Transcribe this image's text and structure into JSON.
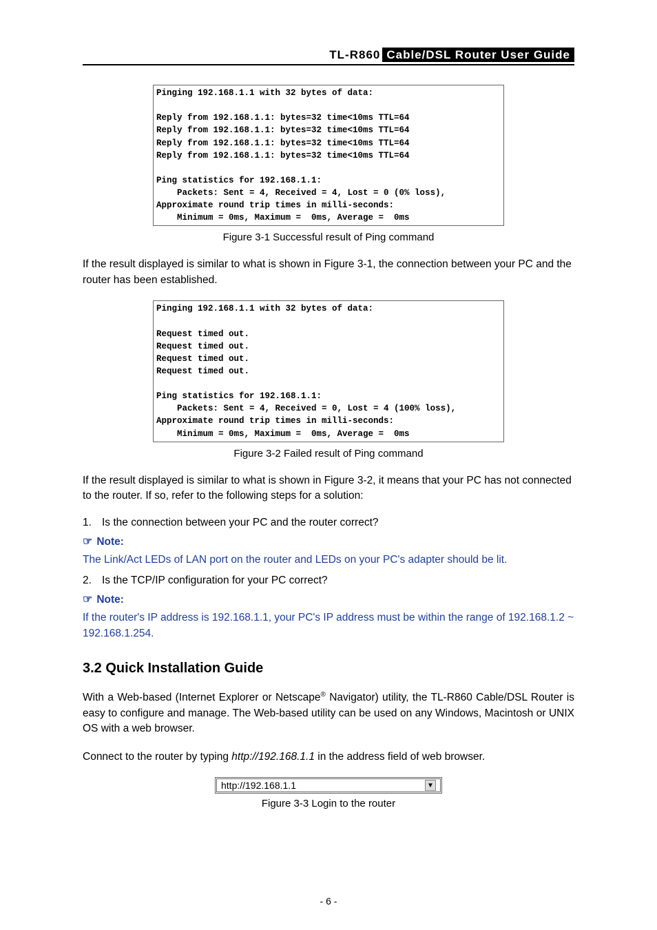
{
  "header": {
    "model": "TL-R860",
    "title": "Cable/DSL  Router  User  Guide"
  },
  "fig31_content": "Pinging 192.168.1.1 with 32 bytes of data:\n\nReply from 192.168.1.1: bytes=32 time<10ms TTL=64\nReply from 192.168.1.1: bytes=32 time<10ms TTL=64\nReply from 192.168.1.1: bytes=32 time<10ms TTL=64\nReply from 192.168.1.1: bytes=32 time<10ms TTL=64\n\nPing statistics for 192.168.1.1:\n    Packets: Sent = 4, Received = 4, Lost = 0 (0% loss),\nApproximate round trip times in milli-seconds:\n    Minimum = 0ms, Maximum =  0ms, Average =  0ms",
  "fig31_caption": "Figure 3-1   Successful result of Ping command",
  "para1": "If the result displayed is similar to what is shown in Figure 3-1, the connection between your PC and the router has been established.",
  "fig32_content": "Pinging 192.168.1.1 with 32 bytes of data:\n\nRequest timed out.\nRequest timed out.\nRequest timed out.\nRequest timed out.\n\nPing statistics for 192.168.1.1:\n    Packets: Sent = 4, Received = 0, Lost = 4 (100% loss),\nApproximate round trip times in milli-seconds:\n    Minimum = 0ms, Maximum =  0ms, Average =  0ms",
  "fig32_caption": "Figure 3-2   Failed result of Ping command",
  "para2": "If the result displayed is similar to what is shown in Figure 3-2, it means that your PC has not connected to the router. If so, refer to the following steps for a solution:",
  "step1_num": "1.",
  "step1": "Is the connection between your PC and the router correct?",
  "note_label": "Note:",
  "note1": "The Link/Act LEDs of LAN port on the router and LEDs on your PC's adapter should be lit.",
  "step2_num": "2.",
  "step2": "Is the TCP/IP configuration for your PC correct?",
  "note2": "If the router's IP address is 192.168.1.1, your PC's IP address must be within the range of 192.168.1.2 ~ 192.168.1.254.",
  "section_heading": "3.2   Quick Installation Guide",
  "para3a": "With a Web-based (Internet Explorer or Netscape",
  "para3b": " Navigator) utility, the TL-R860 Cable/DSL Router is easy to configure and manage. The Web-based utility can be used on any Windows, Macintosh or UNIX OS with a web browser.",
  "para4a": "Connect to the router by typing ",
  "para4_url": "http://192.168.1.1",
  "para4b": " in the address field of web browser.",
  "addr_box": "http://192.168.1.1",
  "fig33_caption": "Figure 3-3 Login to the router",
  "page_num": "- 6 -",
  "colors": {
    "note_blue": "#1f3f9c"
  }
}
